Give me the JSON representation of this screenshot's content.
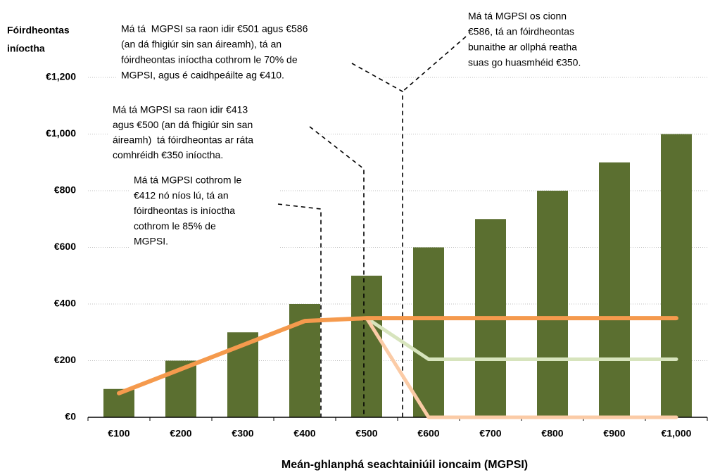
{
  "chart_data": {
    "type": "bar",
    "y_axis_label": [
      "Fóirdheontas",
      "iníoctha"
    ],
    "x_axis_label": "Meán-ghlanphá seachtainiúil ioncaim (MGPSI)",
    "categories": [
      "€100",
      "€200",
      "€300",
      "€400",
      "€500",
      "€600",
      "€700",
      "€800",
      "€900",
      "€1,000"
    ],
    "series": [
      {
        "type": "bar",
        "color": "#5b6f30",
        "values": [
          100,
          200,
          300,
          400,
          500,
          600,
          700,
          800,
          900,
          1000
        ]
      },
      {
        "type": "line",
        "color": "#d7e4bd",
        "values": [
          null,
          null,
          null,
          null,
          350,
          205,
          205,
          205,
          205,
          205
        ]
      },
      {
        "type": "line",
        "color": "#fbcba6",
        "values": [
          null,
          null,
          null,
          null,
          350,
          0,
          0,
          0,
          0,
          0
        ]
      },
      {
        "type": "line",
        "color": "#f59a4d",
        "values": [
          85,
          170,
          255,
          340,
          350,
          350,
          350,
          350,
          350,
          350
        ]
      }
    ],
    "ylim": [
      0,
      1200
    ],
    "yticks": [
      {
        "value": 0,
        "label": "€0"
      },
      {
        "value": 200,
        "label": "€200"
      },
      {
        "value": 400,
        "label": "€400"
      },
      {
        "value": 600,
        "label": "€600"
      },
      {
        "value": 800,
        "label": "€800"
      },
      {
        "value": 1000,
        "label": "€1,000"
      },
      {
        "value": 1200,
        "label": "€1,200"
      }
    ],
    "grid": true,
    "annotations": [
      {
        "lines": [
          "Má tá  MGPSI sa raon idir €501 agus €586",
          "(an dá fhigiúr sin san áireamh), tá an",
          "fóirdheontas iníoctha cothrom le 70% de",
          "MGPSI, agus é caidhpeáilte ag €410."
        ]
      },
      {
        "lines": [
          "Má tá MGPSI os cionn",
          "€586, tá an fóirdheontas",
          "bunaithe ar ollphá reatha",
          "suas go huasmhéid €350."
        ]
      },
      {
        "lines": [
          "Má tá MGPSI sa raon idir €413",
          "agus €500 (an dá fhigiúr sin san",
          "áireamh)  tá fóirdheontas ar ráta",
          "comhréidh €350 iníoctha."
        ]
      },
      {
        "lines": [
          "Má tá MGPSI cothrom le",
          "€412 nó níos lú, tá an",
          "fóirdheontas is iníoctha",
          "cothrom le 85% de",
          "MGPSI."
        ]
      }
    ]
  }
}
